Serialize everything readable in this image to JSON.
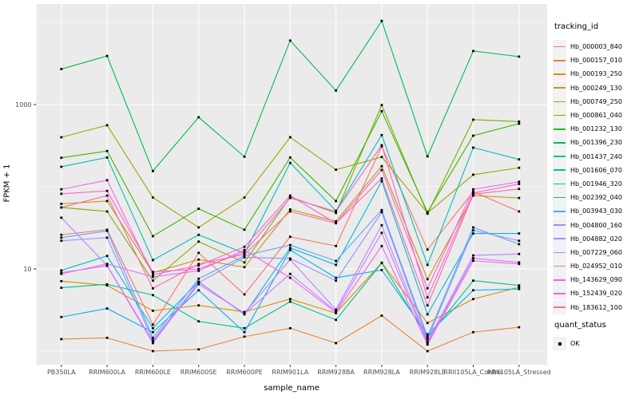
{
  "chart_data": {
    "type": "line",
    "title": "",
    "xlabel": "sample_name",
    "ylabel": "FPKM + 1",
    "y_scale": "log10",
    "y_major_ticks": [
      10,
      1000
    ],
    "y_minor_gridlines": [
      1,
      100,
      10000
    ],
    "ylim_log": [
      0.7,
      15000
    ],
    "grid": "on",
    "panel_color": "#EBEBEB",
    "grid_color": "#FFFFFF",
    "tick_text_color": "#4D4D4D",
    "point_color": "#000000",
    "legend_position": "right",
    "categories": [
      "PB350LA",
      "RRIM600LA",
      "RRIM600LE",
      "RRIM600SE",
      "RRIM600PE",
      "RRIM901LA",
      "RRIM928BA",
      "RRIM928LA",
      "RRIM928LE",
      "RRII105LA_Control",
      "RRII105LA_Stressed"
    ],
    "series": [
      {
        "name": "Hb_000003_840",
        "color": "#F8766D",
        "values": [
          26,
          30,
          2.1,
          15.7,
          4.9,
          24.6,
          19,
          310,
          17.2,
          87,
          50
        ]
      },
      {
        "name": "Hb_000157_010",
        "color": "#EA8331",
        "values": [
          1.4,
          1.45,
          1.0,
          1.05,
          1.5,
          1.9,
          1.25,
          2.7,
          1.0,
          1.7,
          1.95
        ]
      },
      {
        "name": "Hb_000193_250",
        "color": "#D89000",
        "values": [
          7.1,
          6.3,
          3.1,
          3.6,
          3.0,
          4.3,
          2.9,
          11.9,
          2.2,
          4.3,
          6.0
        ]
      },
      {
        "name": "Hb_000249_130",
        "color": "#C09B00",
        "values": [
          62,
          67,
          9.0,
          13,
          10.5,
          53,
          38,
          178,
          7.5,
          78,
          73
        ]
      },
      {
        "name": "Hb_000749_250",
        "color": "#A3A500",
        "values": [
          400,
          560,
          74,
          32,
          74,
          400,
          161,
          230,
          48,
          140,
          170
        ]
      },
      {
        "name": "Hb_000861_040",
        "color": "#7CAE00",
        "values": [
          56,
          50,
          7.2,
          21.5,
          12,
          75,
          48,
          985,
          47,
          654,
          620
        ]
      },
      {
        "name": "Hb_001232_130",
        "color": "#39B600",
        "values": [
          225,
          272,
          25,
          54,
          30,
          227,
          67,
          830,
          49,
          418,
          585
        ]
      },
      {
        "name": "Hb_001396_230",
        "color": "#00BB4E",
        "values": [
          2700,
          3900,
          155,
          700,
          232,
          6000,
          1480,
          10400,
          234,
          4480,
          3830
        ]
      },
      {
        "name": "Hb_001437_240",
        "color": "#00C08C",
        "values": [
          5.9,
          6.5,
          4.8,
          2.3,
          1.9,
          4.0,
          2.4,
          11.8,
          1.45,
          7.2,
          6.3
        ]
      },
      {
        "name": "Hb_001606_070",
        "color": "#00C0B4",
        "values": [
          175,
          227,
          12.8,
          26,
          15.5,
          195,
          51,
          425,
          11.2,
          299,
          215
        ]
      },
      {
        "name": "Hb_001946_320",
        "color": "#00BBDA",
        "values": [
          9.6,
          14.4,
          1.9,
          7.0,
          2.8,
          18,
          11.2,
          117,
          2.8,
          27,
          27
        ]
      },
      {
        "name": "Hb_002392_040",
        "color": "#00B0F6",
        "values": [
          2.6,
          3.3,
          1.7,
          5.5,
          1.7,
          17,
          7.8,
          9.7,
          1.6,
          5.5,
          5.7
        ]
      },
      {
        "name": "Hb_003943_030",
        "color": "#5BA3FF",
        "values": [
          24,
          29,
          1.45,
          7.6,
          14.5,
          19.5,
          12.5,
          52,
          1.5,
          32,
          20
        ]
      },
      {
        "name": "Hb_004800_160",
        "color": "#9590FF",
        "values": [
          22,
          24,
          1.35,
          6.8,
          13.8,
          13.4,
          7.2,
          49,
          1.4,
          29.5,
          22
        ]
      },
      {
        "name": "Hb_004882_020",
        "color": "#B983FF",
        "values": [
          42,
          11,
          1.3,
          6.5,
          2.9,
          13,
          3.2,
          34,
          1.3,
          14.6,
          15.2
        ]
      },
      {
        "name": "Hb_007229_060",
        "color": "#D376FF",
        "values": [
          9.0,
          10.9,
          1.25,
          6.9,
          2.85,
          8.7,
          3.05,
          27.5,
          1.25,
          13.5,
          12
        ]
      },
      {
        "name": "Hb_024952_010",
        "color": "#E76BF3",
        "values": [
          8.7,
          11.5,
          8.0,
          9.5,
          17,
          7.8,
          2.95,
          19,
          1.2,
          12.6,
          11.5
        ]
      },
      {
        "name": "Hb_143629_090",
        "color": "#F763E0",
        "values": [
          93,
          120,
          8.5,
          11,
          18.6,
          78,
          36,
          160,
          5.8,
          93,
          115
        ]
      },
      {
        "name": "Hb_152439_020",
        "color": "#FD61D1",
        "values": [
          82,
          89,
          9.2,
          10,
          16,
          73,
          50,
          320,
          4.5,
          84,
          108
        ]
      },
      {
        "name": "Hb_183612_100",
        "color": "#FF67A4",
        "values": [
          56,
          78,
          5.8,
          11.5,
          15,
          50,
          36,
          126,
          3.6,
          81,
          94
        ]
      }
    ]
  },
  "legend": {
    "tracking_title": "tracking_id",
    "quant_title": "quant_status",
    "quant_ok_label": "OK"
  },
  "axes": {
    "x_label": "sample_name",
    "y_label": "FPKM + 1",
    "y_tick_labels": [
      "1000",
      "10"
    ]
  }
}
